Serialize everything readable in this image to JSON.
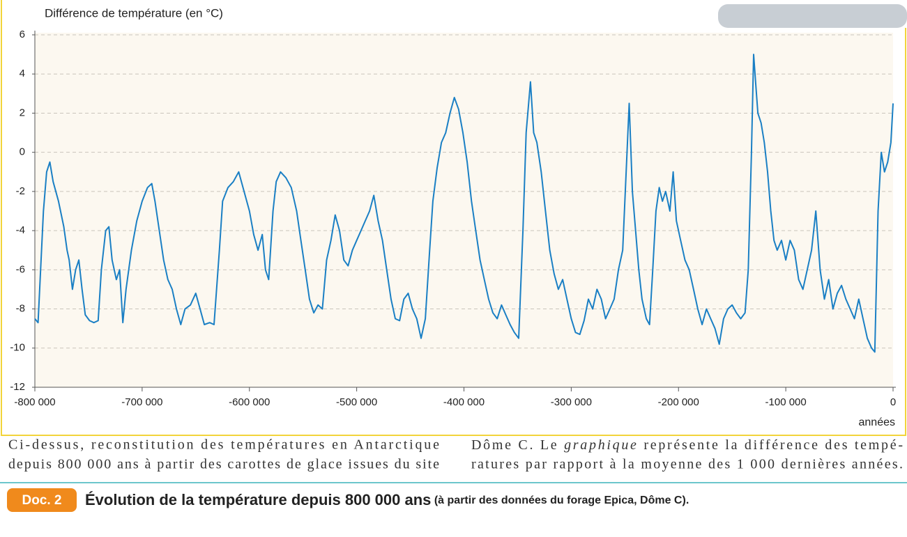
{
  "chart_data": {
    "type": "line",
    "y_label": "Différence de température (en °C)",
    "x_label": "années",
    "color": "#1a7fc4",
    "grid": true,
    "xlim": [
      -800000,
      0
    ],
    "ylim": [
      -12,
      6
    ],
    "xticks": [
      {
        "value": -800000,
        "label": "-800 000"
      },
      {
        "value": -700000,
        "label": "-700 000"
      },
      {
        "value": -600000,
        "label": "-600 000"
      },
      {
        "value": -500000,
        "label": "-500 000"
      },
      {
        "value": -400000,
        "label": "-400 000"
      },
      {
        "value": -300000,
        "label": "-300 000"
      },
      {
        "value": -200000,
        "label": "-200 000"
      },
      {
        "value": -100000,
        "label": "-100 000"
      },
      0
    ],
    "yticks": [
      6,
      4,
      2,
      0,
      -2,
      -4,
      -6,
      -8,
      -10,
      -12
    ],
    "x": [
      -800000,
      -797000,
      -792000,
      -789000,
      -786000,
      -783000,
      -778000,
      -773000,
      -770000,
      -768000,
      -765000,
      -762000,
      -759000,
      -756000,
      -753000,
      -749000,
      -745000,
      -741000,
      -738000,
      -734000,
      -731000,
      -728000,
      -724000,
      -721000,
      -718000,
      -715000,
      -710000,
      -705000,
      -700000,
      -695000,
      -691000,
      -688000,
      -684000,
      -680000,
      -676000,
      -672000,
      -668000,
      -664000,
      -660000,
      -655000,
      -650000,
      -646000,
      -642000,
      -637000,
      -633000,
      -628000,
      -625000,
      -620000,
      -615000,
      -610000,
      -605000,
      -600000,
      -596000,
      -592000,
      -588000,
      -585000,
      -582000,
      -578000,
      -575000,
      -571000,
      -566000,
      -561000,
      -556000,
      -552000,
      -548000,
      -544000,
      -540000,
      -536000,
      -532000,
      -528000,
      -524000,
      -520000,
      -516000,
      -512000,
      -508000,
      -504000,
      -500000,
      -496000,
      -492000,
      -488000,
      -484000,
      -480000,
      -476000,
      -472000,
      -468000,
      -464000,
      -460000,
      -456000,
      -452000,
      -448000,
      -444000,
      -440000,
      -436000,
      -432000,
      -429000,
      -425000,
      -421000,
      -417000,
      -413000,
      -409000,
      -405000,
      -401000,
      -397000,
      -393000,
      -389000,
      -385000,
      -381000,
      -377000,
      -373000,
      -369000,
      -365000,
      -361000,
      -357000,
      -353000,
      -349000,
      -345000,
      -342000,
      -338000,
      -335000,
      -332000,
      -328000,
      -324000,
      -320000,
      -316000,
      -312000,
      -308000,
      -304000,
      -300000,
      -296000,
      -292000,
      -288000,
      -284000,
      -280000,
      -276000,
      -272000,
      -268000,
      -264000,
      -260000,
      -256000,
      -252000,
      -248000,
      -246000,
      -243000,
      -240000,
      -237000,
      -234000,
      -230000,
      -227000,
      -224000,
      -221000,
      -218000,
      -215000,
      -212000,
      -208000,
      -205000,
      -202000,
      -198000,
      -194000,
      -190000,
      -186000,
      -182000,
      -178000,
      -174000,
      -170000,
      -166000,
      -162000,
      -158000,
      -154000,
      -150000,
      -146000,
      -142000,
      -138000,
      -135000,
      -132000,
      -130000,
      -128000,
      -126000,
      -123000,
      -120000,
      -117000,
      -114000,
      -111000,
      -108000,
      -104000,
      -100000,
      -96000,
      -92000,
      -88000,
      -84000,
      -80000,
      -76000,
      -72000,
      -68000,
      -64000,
      -60000,
      -56000,
      -52000,
      -48000,
      -44000,
      -40000,
      -36000,
      -32000,
      -28000,
      -24000,
      -20000,
      -17000,
      -14000,
      -11000,
      -8000,
      -5000,
      -2000,
      0
    ],
    "values": [
      -8.5,
      -8.7,
      -3,
      -1,
      -0.5,
      -1.5,
      -2.5,
      -3.8,
      -5,
      -5.5,
      -7,
      -6,
      -5.5,
      -7,
      -8.3,
      -8.6,
      -8.7,
      -8.6,
      -6,
      -4,
      -3.8,
      -5.5,
      -6.5,
      -6,
      -8.7,
      -7,
      -5,
      -3.5,
      -2.5,
      -1.8,
      -1.6,
      -2.5,
      -4,
      -5.5,
      -6.5,
      -7,
      -8,
      -8.8,
      -8,
      -7.8,
      -7.2,
      -8,
      -8.8,
      -8.7,
      -8.8,
      -5,
      -2.5,
      -1.8,
      -1.5,
      -1,
      -2,
      -3,
      -4.2,
      -5,
      -4.2,
      -6,
      -6.5,
      -3,
      -1.5,
      -1,
      -1.3,
      -1.8,
      -3,
      -4.5,
      -6,
      -7.5,
      -8.2,
      -7.8,
      -8,
      -5.5,
      -4.5,
      -3.2,
      -4,
      -5.5,
      -5.8,
      -5,
      -4.5,
      -4,
      -3.5,
      -3,
      -2.2,
      -3.5,
      -4.5,
      -6,
      -7.5,
      -8.5,
      -8.6,
      -7.5,
      -7.2,
      -8,
      -8.5,
      -9.5,
      -8.5,
      -5,
      -2.5,
      -0.8,
      0.5,
      1,
      2,
      2.8,
      2.2,
      1,
      -0.5,
      -2.5,
      -4,
      -5.5,
      -6.5,
      -7.5,
      -8.2,
      -8.5,
      -7.8,
      -8.3,
      -8.8,
      -9.2,
      -9.5,
      -4,
      1,
      3.6,
      1,
      0.5,
      -1,
      -3,
      -5,
      -6.2,
      -7,
      -6.5,
      -7.5,
      -8.5,
      -9.2,
      -9.3,
      -8.6,
      -7.5,
      -8,
      -7,
      -7.5,
      -8.5,
      -8,
      -7.5,
      -6,
      -5,
      0,
      2.5,
      -2,
      -4,
      -6,
      -7.5,
      -8.5,
      -8.8,
      -6,
      -3,
      -1.8,
      -2.5,
      -2,
      -3,
      -1,
      -3.5,
      -4.5,
      -5.5,
      -6,
      -7,
      -8,
      -8.8,
      -8,
      -8.5,
      -9,
      -9.8,
      -8.5,
      -8,
      -7.8,
      -8.2,
      -8.5,
      -8.2,
      -6,
      0,
      5,
      3.5,
      2,
      1.5,
      0.5,
      -1,
      -3,
      -4.5,
      -5,
      -4.5,
      -5.5,
      -4.5,
      -5,
      -6.5,
      -7,
      -6,
      -5,
      -3,
      -6,
      -7.5,
      -6.5,
      -8,
      -7.2,
      -6.8,
      -7.5,
      -8,
      -8.5,
      -7.5,
      -8.5,
      -9.5,
      -10,
      -10.2,
      -3,
      0,
      -1,
      -0.5,
      0.5,
      2.5
    ]
  },
  "caption": {
    "left_lines": [
      "Ci-dessus, reconstitution des températures en Antarctique",
      "depuis 800 000 ans à partir des carottes de glace issues du site"
    ],
    "right_line1": [
      "Dôme C. Le ",
      "graphique",
      " représente la différence des tempé-"
    ],
    "right_line2": "ratures par rapport à la moyenne des 1 000 dernières années."
  },
  "doc": {
    "badge": "Doc. 2",
    "title": "Évolution de la température depuis 800 000 ans",
    "subtitle": " (à partir des données du forage Epica, Dôme C)."
  }
}
